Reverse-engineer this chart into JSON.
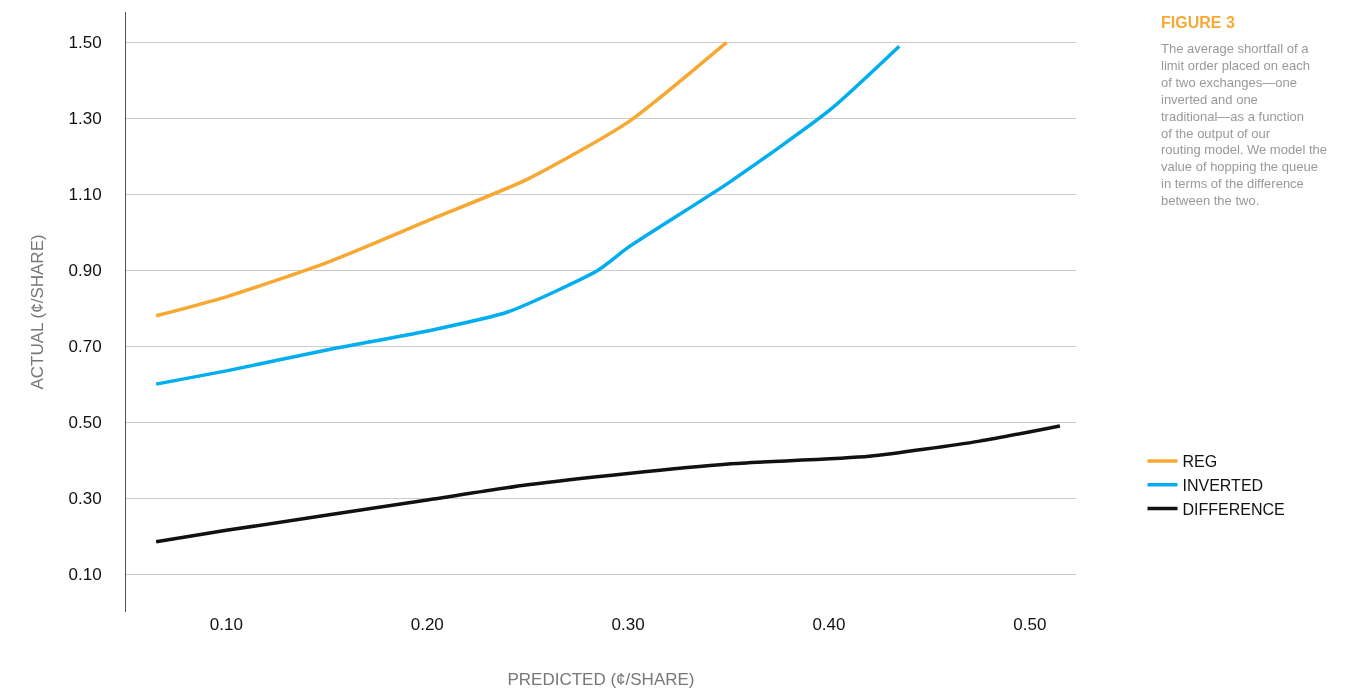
{
  "chart_data": {
    "type": "line",
    "title": "FIGURE 3",
    "xlabel": "PREDICTED (¢/SHARE)",
    "ylabel": "ACTUAL (¢/SHARE)",
    "annotations": [
      "The average shortfall of a limit order placed on each of two exchanges—one inverted and one traditional—as a function of the output of our routing model. We model the value of hopping the queue in terms of the difference between the two."
    ],
    "series": [
      {
        "name": "REG",
        "color": "#f7a833",
        "x": [
          0.065,
          0.1,
          0.15,
          0.2,
          0.25,
          0.3,
          0.349
        ],
        "values": [
          0.78,
          0.83,
          0.92,
          1.03,
          1.14,
          1.29,
          1.5
        ]
      },
      {
        "name": "INVERTED",
        "color": "#00aeef",
        "x": [
          0.065,
          0.1,
          0.15,
          0.2,
          0.24,
          0.285,
          0.3,
          0.35,
          0.4,
          0.435
        ],
        "values": [
          0.6,
          0.635,
          0.69,
          0.74,
          0.79,
          0.9,
          0.96,
          1.13,
          1.32,
          1.49
        ]
      },
      {
        "name": "DIFFERENCE",
        "color": "#111111",
        "x": [
          0.065,
          0.1,
          0.2,
          0.25,
          0.3,
          0.35,
          0.42,
          0.475,
          0.515
        ],
        "values": [
          0.185,
          0.215,
          0.295,
          0.335,
          0.365,
          0.39,
          0.41,
          0.45,
          0.49
        ]
      }
    ],
    "xlim": [
      0.05,
      0.523
    ],
    "ylim": [
      0.0,
      1.58
    ],
    "xticks": [
      {
        "value": 0.1,
        "label": "0.10"
      },
      {
        "value": 0.2,
        "label": "0.20"
      },
      {
        "value": 0.3,
        "label": "0.30"
      },
      {
        "value": 0.4,
        "label": "0.40"
      },
      {
        "value": 0.5,
        "label": "0.50"
      }
    ],
    "yticks": [
      {
        "value": 0.1,
        "label": "0.10"
      },
      {
        "value": 0.3,
        "label": "0.30"
      },
      {
        "value": 0.5,
        "label": "0.50"
      },
      {
        "value": 0.7,
        "label": "0.70"
      },
      {
        "value": 0.9,
        "label": "0.90"
      },
      {
        "value": 1.1,
        "label": "1.10"
      },
      {
        "value": 1.3,
        "label": "1.30"
      },
      {
        "value": 1.5,
        "label": "1.50"
      }
    ],
    "grid": "y",
    "legend": "bottom right",
    "marker": "none",
    "line_style": "solid"
  }
}
